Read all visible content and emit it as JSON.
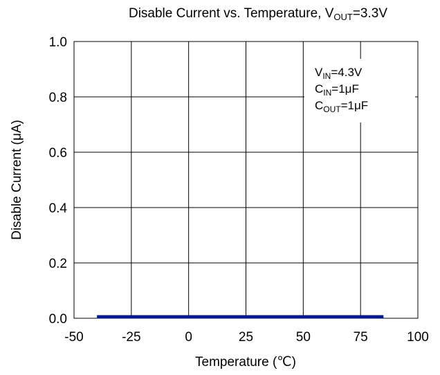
{
  "chart_data": {
    "type": "line",
    "title": {
      "main": "Disable Current vs. Temperature, V",
      "sub": "OUT",
      "tail": "=3.3V"
    },
    "xlabel": "Temperature (℃)",
    "ylabel": "Disable Current (μA)",
    "xlim": [
      -50,
      100
    ],
    "ylim": [
      0,
      1.0
    ],
    "x_ticks": [
      -50,
      -25,
      0,
      25,
      50,
      75,
      100
    ],
    "y_ticks": [
      0,
      0.2,
      0.4,
      0.6,
      0.8,
      1.0
    ],
    "x_tick_labels": [
      "-50",
      "-25",
      "0",
      "25",
      "50",
      "75",
      "100"
    ],
    "y_tick_labels": [
      "0.0",
      "0.2",
      "0.4",
      "0.6",
      "0.8",
      "1.0"
    ],
    "grid": true,
    "series": [
      {
        "color": "#001a8c",
        "x": [
          -40,
          -25,
          0,
          25,
          50,
          75,
          85
        ],
        "y": [
          0.005,
          0.005,
          0.005,
          0.005,
          0.005,
          0.005,
          0.005
        ]
      }
    ],
    "annotation": {
      "placement": "top-right",
      "lines": [
        {
          "main": "V",
          "sub": "IN",
          "tail": "=4.3V"
        },
        {
          "main": "C",
          "sub": "IN",
          "tail": "=1μF"
        },
        {
          "main": "C",
          "sub": "OUT",
          "tail": "=1μF"
        }
      ]
    }
  }
}
